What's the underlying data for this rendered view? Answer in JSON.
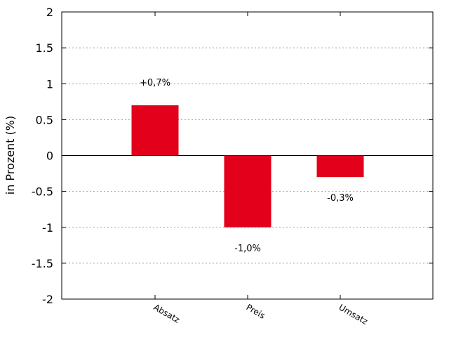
{
  "chart_data": {
    "type": "bar",
    "title": "",
    "xlabel": "",
    "ylabel": "in Prozent (%)",
    "categories": [
      "Absatz",
      "Preis",
      "Umsatz"
    ],
    "values": [
      0.7,
      -1.0,
      -0.3
    ],
    "data_labels": [
      "+0,7%",
      "-1,0%",
      "-0,3%"
    ],
    "ylim": [
      -2,
      2
    ],
    "yticks": [
      -2,
      -1.5,
      -1,
      -0.5,
      0,
      0.5,
      1,
      1.5,
      2
    ],
    "ytick_labels": [
      "-2",
      "-1.5",
      "-1",
      "-0.5",
      "0",
      "0.5",
      "1",
      "1.5",
      "2"
    ],
    "grid": true,
    "bar_color": "#e2001a",
    "legend": "none"
  }
}
